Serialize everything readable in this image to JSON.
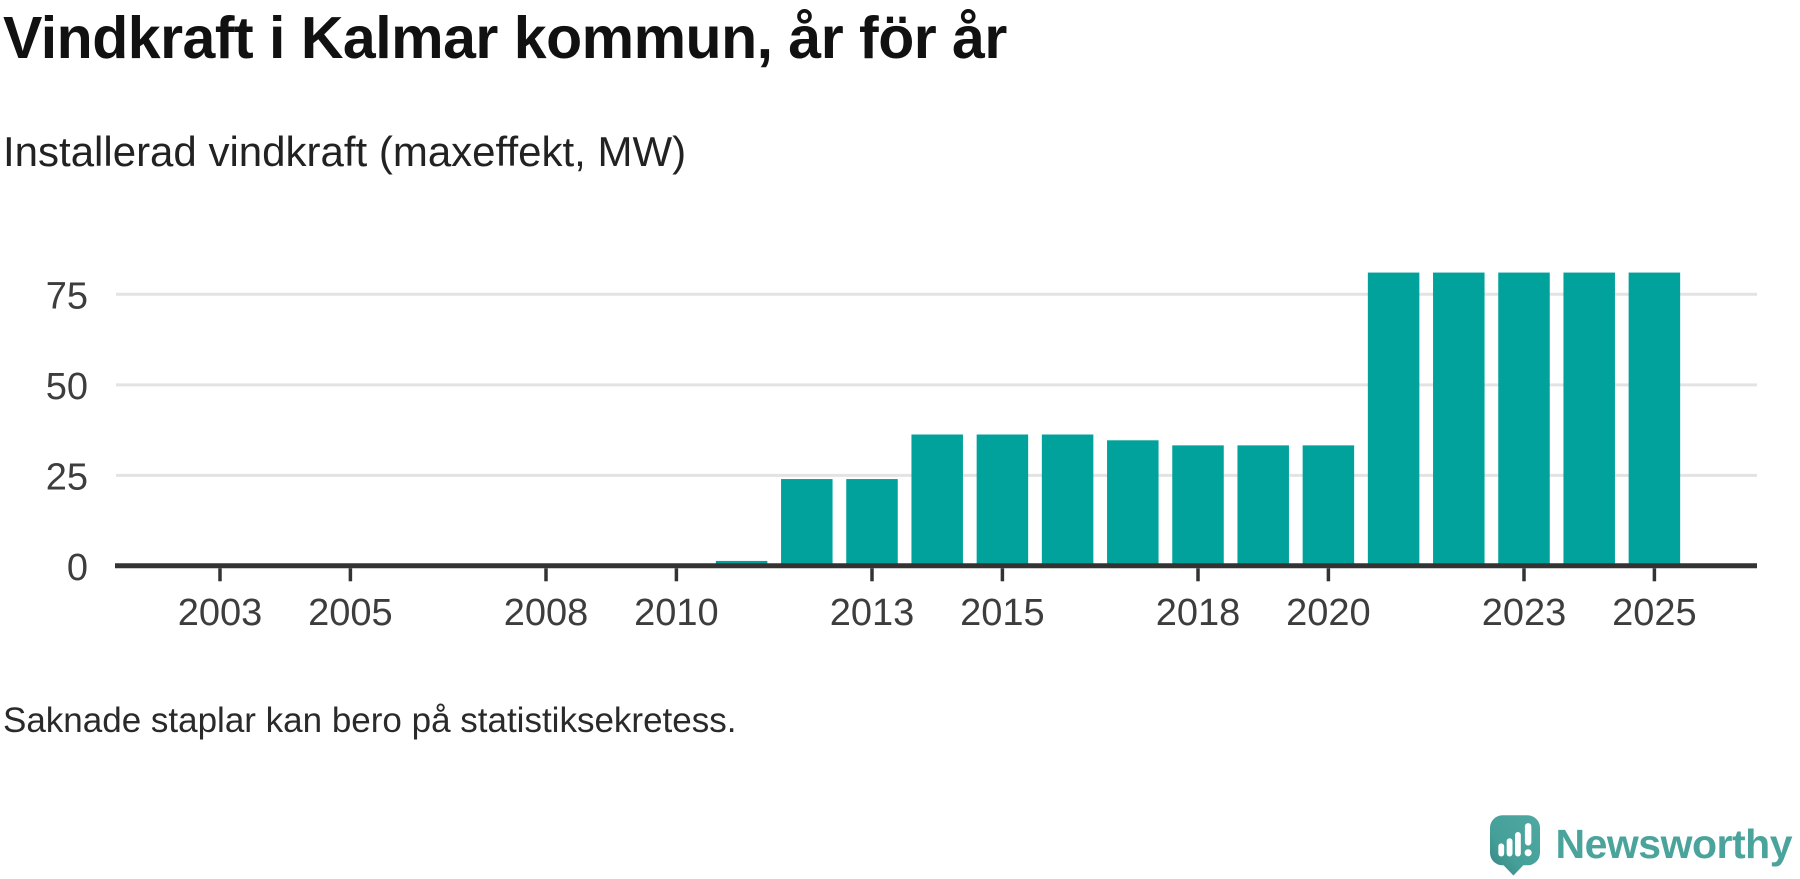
{
  "header": {
    "title": "Vindkraft i Kalmar kommun, år för år",
    "subtitle": "Installerad vindkraft (maxeffekt, MW)"
  },
  "footnote": "Saknade staplar kan bero på statistiksekretess.",
  "branding": {
    "wordmark": "Newsworthy",
    "logo_icon": "speech-bubble-bar-chart-icon",
    "teal": "#4ba49c"
  },
  "chart_data": {
    "type": "bar",
    "title": "Vindkraft i Kalmar kommun, år för år",
    "subtitle": "Installerad vindkraft (maxeffekt, MW)",
    "xlabel": "",
    "ylabel": "Installerad vindkraft (maxeffekt, MW)",
    "x": [
      2011,
      2012,
      2013,
      2014,
      2015,
      2016,
      2017,
      2018,
      2019,
      2020,
      2021,
      2022,
      2023,
      2024,
      2025
    ],
    "values": [
      1.4,
      24,
      24,
      36.3,
      36.3,
      36.3,
      34.7,
      33.3,
      33.3,
      33.3,
      81,
      81,
      81,
      81,
      81
    ],
    "xlim": [
      2001.4,
      2026.6
    ],
    "ylim": [
      0,
      83
    ],
    "xticks": [
      2003,
      2005,
      2008,
      2010,
      2013,
      2015,
      2018,
      2020,
      2023,
      2025
    ],
    "yticks": [
      0,
      25,
      50,
      75
    ],
    "grid": "horizontal",
    "legend": "none",
    "bar_color": "#00a29b",
    "axis_color": "#333333",
    "grid_color": "#e3e3e3"
  }
}
